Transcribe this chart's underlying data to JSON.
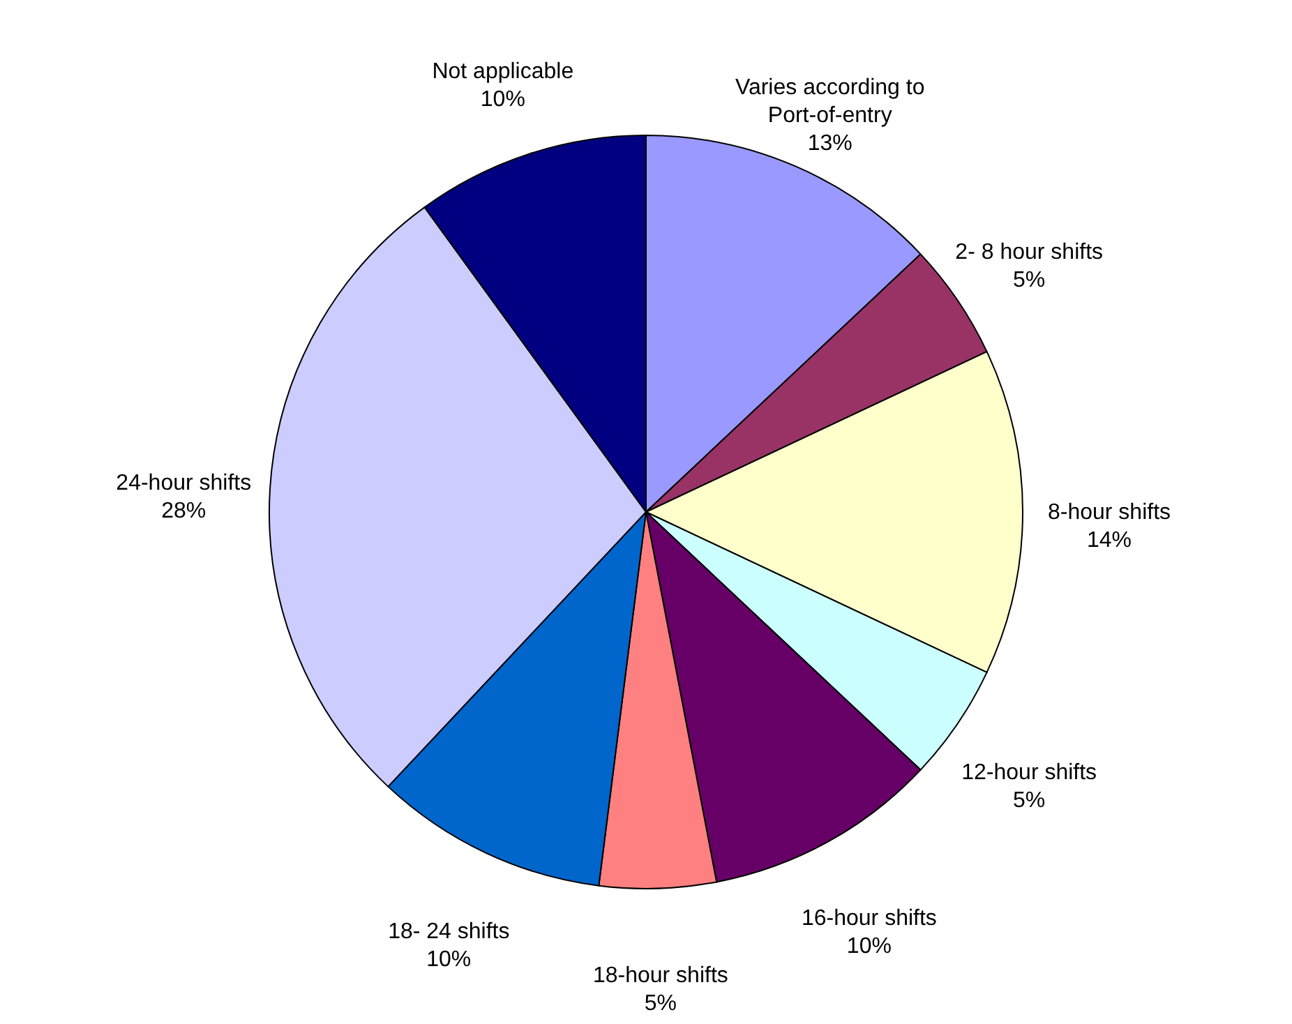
{
  "chart_data": {
    "type": "pie",
    "categories": [
      "Varies according to Port-of-entry",
      "2- 8 hour shifts",
      "8-hour shifts",
      "12-hour shifts",
      "16-hour shifts",
      "18-hour shifts",
      "18- 24 shifts",
      "24-hour shifts",
      "Not applicable"
    ],
    "values": [
      13,
      5,
      14,
      5,
      10,
      5,
      10,
      28,
      10
    ],
    "value_labels": [
      "13%",
      "5%",
      "14%",
      "5%",
      "10%",
      "5%",
      "10%",
      "28%",
      "10%"
    ],
    "colors": [
      "#9999ff",
      "#993366",
      "#ffffcc",
      "#ccffff",
      "#660066",
      "#ff8080",
      "#0066cc",
      "#ccccff",
      "#000080"
    ]
  }
}
